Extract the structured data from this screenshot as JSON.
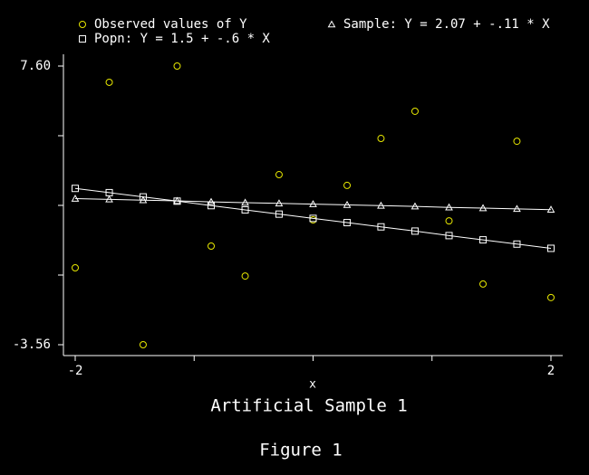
{
  "chart_data": {
    "type": "scatter",
    "title": "Artificial Sample 1",
    "caption": "Figure 1",
    "xlabel": "x",
    "x": [
      -2,
      -1.714,
      -1.429,
      -1.143,
      -0.857,
      -0.571,
      -0.286,
      0,
      0.286,
      0.571,
      0.857,
      1.143,
      1.429,
      1.714,
      2
    ],
    "series": [
      {
        "name": "Observed values of Y",
        "color": "#e8e800",
        "marker": "circle",
        "line": false,
        "values": [
          -0.48,
          6.95,
          -3.56,
          7.6,
          0.39,
          -0.81,
          3.25,
          1.44,
          2.82,
          4.7,
          5.79,
          1.4,
          -1.13,
          4.59,
          -1.67
        ]
      },
      {
        "name": "Sample: Y = 2.07 + -.11 * X",
        "color": "#ffffff",
        "marker": "triangle",
        "line": true,
        "values": [
          2.29,
          2.26,
          2.23,
          2.2,
          2.16,
          2.13,
          2.1,
          2.07,
          2.04,
          2.01,
          1.98,
          1.94,
          1.91,
          1.88,
          1.85
        ]
      },
      {
        "name": "Popn: Y = 1.5 + -.6 * X",
        "color": "#ffffff",
        "marker": "square",
        "line": true,
        "values": [
          2.7,
          2.53,
          2.36,
          2.19,
          2.01,
          1.84,
          1.67,
          1.5,
          1.33,
          1.16,
          0.99,
          0.81,
          0.64,
          0.47,
          0.3
        ]
      }
    ],
    "xlim": [
      -2,
      2
    ],
    "ylim": [
      -3.56,
      7.6
    ],
    "xticks": [
      -2,
      2
    ],
    "xticks_minor": [
      -1,
      0,
      1
    ],
    "yticks": [
      {
        "value": 7.6,
        "label": "7.60"
      },
      -3.56
    ],
    "yticks_minor": [
      4.81,
      2.02,
      -0.77
    ],
    "grid": false
  }
}
